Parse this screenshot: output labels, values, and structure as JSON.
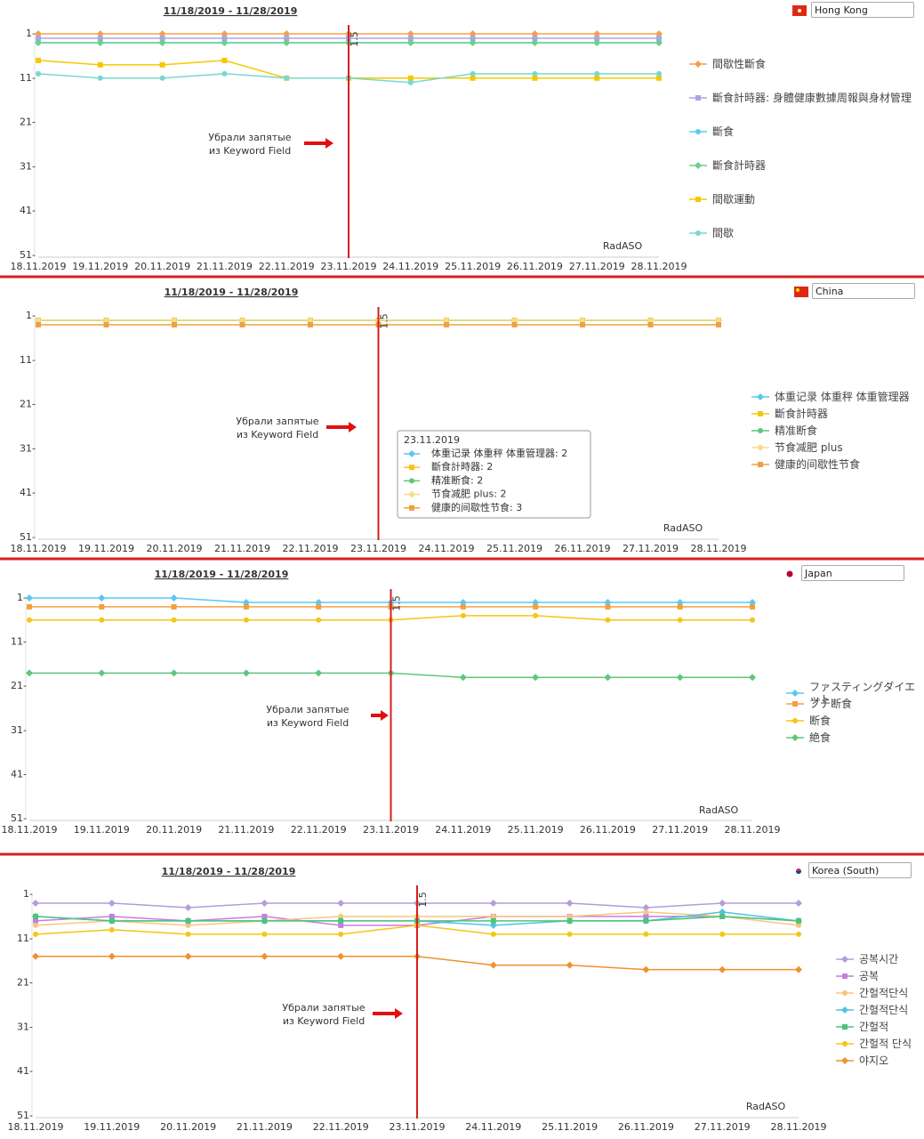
{
  "chart_data": [
    {
      "type": "line",
      "title": "11/18/2019 - 11/28/2019",
      "country": "Hong Kong",
      "categories": [
        "18.11.2019",
        "19.11.2019",
        "20.11.2019",
        "21.11.2019",
        "22.11.2019",
        "23.11.2019",
        "24.11.2019",
        "25.11.2019",
        "26.11.2019",
        "27.11.2019",
        "28.11.2019"
      ],
      "ylim": [
        1,
        51
      ],
      "y_reversed": true,
      "yticks": [
        {
          "value": 1,
          "label": "1-"
        },
        {
          "value": 11,
          "label": "11-"
        },
        {
          "value": 21,
          "label": "21-"
        },
        {
          "value": 31,
          "label": "31-"
        },
        {
          "value": 41,
          "label": "41-"
        },
        {
          "value": 51,
          "label": "51-"
        }
      ],
      "grid": false,
      "series": [
        {
          "name": "間歇性斷食",
          "color": "#f5a04a",
          "marker": "diamond",
          "values": [
            1,
            1,
            1,
            1,
            1,
            1,
            1,
            1,
            1,
            1,
            1
          ]
        },
        {
          "name": "斷食計時器: 身體健康數據周報與身材管理",
          "color": "#a9a6e8",
          "marker": "square",
          "values": [
            2,
            2,
            2,
            2,
            2,
            2,
            2,
            2,
            2,
            2,
            2
          ]
        },
        {
          "name": "斷食",
          "color": "#55d0e8",
          "marker": "circle",
          "values": [
            3,
            3,
            3,
            3,
            3,
            3,
            3,
            3,
            3,
            3,
            3
          ]
        },
        {
          "name": "斷食計時器",
          "color": "#6ccf8a",
          "marker": "diamond",
          "values": [
            3,
            3,
            3,
            3,
            3,
            3,
            3,
            3,
            3,
            3,
            3
          ]
        },
        {
          "name": "間歇運動",
          "color": "#f7c800",
          "marker": "square",
          "values": [
            7,
            8,
            8,
            7,
            11,
            11,
            11,
            11,
            11,
            11,
            11
          ]
        },
        {
          "name": "間歇",
          "color": "#77d8d0",
          "marker": "circle",
          "values": [
            10,
            11,
            11,
            10,
            11,
            11,
            12,
            10,
            10,
            10,
            10
          ]
        }
      ],
      "marker_line": {
        "x": "23.11.2019",
        "label": "1.5"
      },
      "annotation": [
        "Убрали запятые",
        "из Keyword Field"
      ],
      "watermark": "RadASO"
    },
    {
      "type": "line",
      "title": "11/18/2019 - 11/28/2019",
      "country": "China",
      "categories": [
        "18.11.2019",
        "19.11.2019",
        "20.11.2019",
        "21.11.2019",
        "22.11.2019",
        "23.11.2019",
        "24.11.2019",
        "25.11.2019",
        "26.11.2019",
        "27.11.2019",
        "28.11.2019"
      ],
      "ylim": [
        1,
        51
      ],
      "y_reversed": true,
      "yticks": [
        {
          "value": 1,
          "label": "1-"
        },
        {
          "value": 11,
          "label": "11-"
        },
        {
          "value": 21,
          "label": "21-"
        },
        {
          "value": 31,
          "label": "31-"
        },
        {
          "value": 41,
          "label": "41-"
        },
        {
          "value": 51,
          "label": "51-"
        }
      ],
      "grid": false,
      "series": [
        {
          "name": "体重记录 体重秤 体重管理器",
          "color": "#5bc8f0",
          "marker": "diamond",
          "values": [
            2,
            2,
            2,
            2,
            2,
            2,
            2,
            2,
            2,
            2,
            2
          ]
        },
        {
          "name": "斷食計時器",
          "color": "#f5c518",
          "marker": "square",
          "values": [
            2,
            2,
            2,
            2,
            2,
            2,
            2,
            2,
            2,
            2,
            2
          ]
        },
        {
          "name": "精准断食",
          "color": "#5cc87a",
          "marker": "circle",
          "values": [
            2,
            2,
            2,
            2,
            2,
            2,
            2,
            2,
            2,
            2,
            2
          ]
        },
        {
          "name": "节食减肥 plus",
          "color": "#f5dd8a",
          "marker": "diamond",
          "values": [
            2,
            2,
            2,
            2,
            2,
            2,
            2,
            2,
            2,
            2,
            2
          ]
        },
        {
          "name": "健康的间歇性节食",
          "color": "#f0a040",
          "marker": "square",
          "values": [
            3,
            3,
            3,
            3,
            3,
            3,
            3,
            3,
            3,
            3,
            3
          ]
        }
      ],
      "marker_line": {
        "x": "23.11.2019",
        "label": "1.5"
      },
      "annotation": [
        "Убрали запятые",
        "из Keyword Field"
      ],
      "tooltip": {
        "title": "23.11.2019",
        "items": [
          "体重记录  体重秤  体重管理器: 2",
          "斷食計時器: 2",
          "精准断食: 2",
          "节食减肥  plus: 2",
          "健康的间歇性节食: 3"
        ]
      },
      "watermark": "RadASO"
    },
    {
      "type": "line",
      "title": "11/18/2019 - 11/28/2019",
      "country": "Japan",
      "categories": [
        "18.11.2019",
        "19.11.2019",
        "20.11.2019",
        "21.11.2019",
        "22.11.2019",
        "23.11.2019",
        "24.11.2019",
        "25.11.2019",
        "26.11.2019",
        "27.11.2019",
        "28.11.2019"
      ],
      "ylim": [
        1,
        51
      ],
      "y_reversed": true,
      "yticks": [
        {
          "value": 1,
          "label": "1-"
        },
        {
          "value": 11,
          "label": "11-"
        },
        {
          "value": 21,
          "label": "21-"
        },
        {
          "value": 31,
          "label": "31-"
        },
        {
          "value": 41,
          "label": "41-"
        },
        {
          "value": 51,
          "label": "51-"
        }
      ],
      "grid": false,
      "series": [
        {
          "name": "ファスティングダイエット",
          "color": "#5bc8f0",
          "marker": "diamond",
          "values": [
            1,
            1,
            1,
            2,
            2,
            2,
            2,
            2,
            2,
            2,
            2
          ]
        },
        {
          "name": "プチ断食",
          "color": "#f0a040",
          "marker": "square",
          "values": [
            3,
            3,
            3,
            3,
            3,
            3,
            3,
            3,
            3,
            3,
            3
          ]
        },
        {
          "name": "断食",
          "color": "#f5c518",
          "marker": "circle",
          "values": [
            6,
            6,
            6,
            6,
            6,
            6,
            5,
            5,
            6,
            6,
            6
          ]
        },
        {
          "name": "絶食",
          "color": "#5cc87a",
          "marker": "diamond",
          "values": [
            18,
            18,
            18,
            18,
            18,
            18,
            19,
            19,
            19,
            19,
            19
          ]
        }
      ],
      "marker_line": {
        "x": "23.11.2019",
        "label": "1.5"
      },
      "annotation": [
        "Убрали запятые",
        "из Keyword Field"
      ],
      "watermark": "RadASO"
    },
    {
      "type": "line",
      "title": "11/18/2019 - 11/28/2019",
      "country": "Korea (South)",
      "categories": [
        "18.11.2019",
        "19.11.2019",
        "20.11.2019",
        "21.11.2019",
        "22.11.2019",
        "23.11.2019",
        "24.11.2019",
        "25.11.2019",
        "26.11.2019",
        "27.11.2019",
        "28.11.2019"
      ],
      "ylim": [
        1,
        51
      ],
      "y_reversed": true,
      "yticks": [
        {
          "value": 1,
          "label": "1-"
        },
        {
          "value": 11,
          "label": "11-"
        },
        {
          "value": 21,
          "label": "21-"
        },
        {
          "value": 31,
          "label": "31-"
        },
        {
          "value": 41,
          "label": "41-"
        },
        {
          "value": 51,
          "label": "51-"
        }
      ],
      "grid": false,
      "series": [
        {
          "name": "공복시간",
          "color": "#b39ddb",
          "marker": "diamond",
          "values": [
            3,
            3,
            4,
            3,
            3,
            3,
            3,
            3,
            4,
            3,
            3
          ]
        },
        {
          "name": "공복",
          "color": "#c77de0",
          "marker": "square",
          "values": [
            7,
            6,
            7,
            6,
            8,
            8,
            6,
            6,
            6,
            6,
            7
          ]
        },
        {
          "name": "간헐적단식",
          "color": "#f5c77e",
          "marker": "circle",
          "values": [
            8,
            7,
            8,
            7,
            6,
            6,
            6,
            6,
            5,
            6,
            8
          ]
        },
        {
          "name": "간혈적단식",
          "color": "#4fc3e0",
          "marker": "diamond",
          "values": [
            6,
            7,
            7,
            7,
            7,
            7,
            8,
            7,
            7,
            5,
            7
          ]
        },
        {
          "name": "간헐적",
          "color": "#4dc47a",
          "marker": "square",
          "values": [
            6,
            7,
            7,
            7,
            7,
            7,
            7,
            7,
            7,
            6,
            7
          ]
        },
        {
          "name": "간헐적 단식",
          "color": "#f5c518",
          "marker": "circle",
          "values": [
            10,
            9,
            10,
            10,
            10,
            8,
            10,
            10,
            10,
            10,
            10
          ]
        },
        {
          "name": "야지오",
          "color": "#f09030",
          "marker": "diamond",
          "values": [
            15,
            15,
            15,
            15,
            15,
            15,
            17,
            17,
            18,
            18,
            18
          ]
        }
      ],
      "marker_line": {
        "x": "23.11.2019",
        "label": "1.5"
      },
      "annotation": [
        "Убрали запятые",
        "из Keyword Field"
      ],
      "watermark": "RadASO"
    }
  ]
}
